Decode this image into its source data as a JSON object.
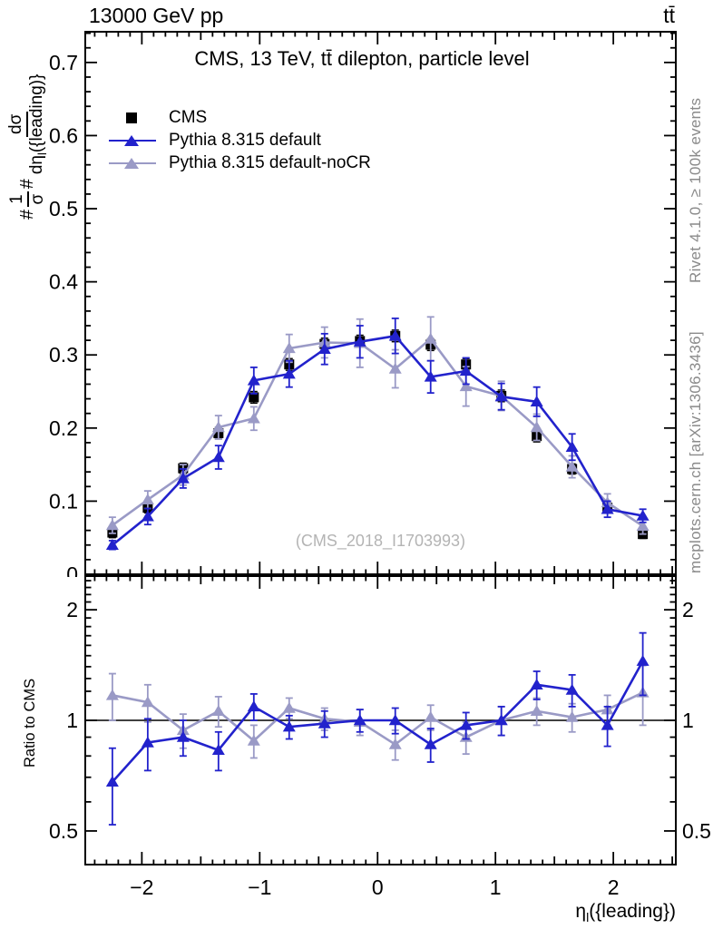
{
  "header": {
    "beam": "13000 GeV pp",
    "process": "tt̄"
  },
  "titles": {
    "plot_title": "CMS, 13 TeV, tt̄ dilepton, particle level",
    "watermark": "(CMS_2018_I1703993)",
    "rivet_note": "Rivet 4.1.0, ≥ 100k events",
    "mcplots_note": "mcplots.cern.ch [arXiv:1306.3436]"
  },
  "legend": [
    {
      "label": "CMS",
      "marker": "square",
      "color": "#000000"
    },
    {
      "label": "Pythia 8.315 default",
      "marker": "line-triangle",
      "color": "#2222cc"
    },
    {
      "label": "Pythia 8.315 default-noCR",
      "marker": "line-triangle",
      "color": "#9a9ac6"
    }
  ],
  "axis": {
    "y_prefix": "#",
    "y_f1num": "1",
    "y_f1den": "σ",
    "y_mid": "#",
    "y_f2num": "dσ",
    "y_f2den_pre": "dη",
    "y_f2den_sub": "l",
    "y_f2den_post": "({leading)}",
    "x_pre": "η",
    "x_sub": "l",
    "x_post": "({leading})",
    "ratio_label": "Ratio to CMS"
  },
  "colors": {
    "cms": "#000000",
    "pythia_default": "#2222cc",
    "pythia_nocr": "#9a9ac6",
    "frame": "#000000",
    "side_text": "#8a8a8a",
    "watermark": "#b4b4b4"
  },
  "chart_data": {
    "type": "line",
    "title": "CMS, 13 TeV, tt̄ dilepton, particle level",
    "xlabel": "η_l({leading})",
    "ylabel": "# 1/σ # dσ/dη_l({leading)}",
    "legend_position": "top-left",
    "grid": false,
    "x_bins": [
      -2.25,
      -1.95,
      -1.65,
      -1.35,
      -1.05,
      -0.75,
      -0.45,
      -0.15,
      0.15,
      0.45,
      0.75,
      1.05,
      1.35,
      1.65,
      1.95,
      2.25
    ],
    "xlim": [
      -2.48,
      2.53
    ],
    "xticks": {
      "major": [
        -2,
        -1,
        0,
        1,
        2
      ],
      "labels": [
        "−2",
        "−1",
        "0",
        "1",
        "2"
      ],
      "minor_step": 0.1,
      "medium_step": 0.5
    },
    "main_panel": {
      "ylim": [
        0,
        0.742
      ],
      "ytick_minor_step": 0.02,
      "ytick_labels": [
        {
          "v": 0,
          "t": "0"
        },
        {
          "v": 0.1,
          "t": "0.1"
        },
        {
          "v": 0.2,
          "t": "0.2"
        },
        {
          "v": 0.3,
          "t": "0.3"
        },
        {
          "v": 0.4,
          "t": "0.4"
        },
        {
          "v": 0.5,
          "t": "0.5"
        },
        {
          "v": 0.6,
          "t": "0.6"
        },
        {
          "v": 0.7,
          "t": "0.7"
        }
      ],
      "series": [
        {
          "id": "cms",
          "name": "CMS",
          "color": "#000000",
          "marker": "square",
          "line": false,
          "values": [
            0.057,
            0.091,
            0.145,
            0.193,
            0.242,
            0.287,
            0.315,
            0.319,
            0.326,
            0.314,
            0.287,
            0.244,
            0.189,
            0.144,
            0.091,
            0.055
          ],
          "errors": [
            0.007,
            0.007,
            0.007,
            0.008,
            0.008,
            0.008,
            0.008,
            0.008,
            0.008,
            0.008,
            0.008,
            0.008,
            0.008,
            0.007,
            0.007,
            0.006
          ]
        },
        {
          "id": "pythia-nocr",
          "name": "Pythia 8.315 default-noCR",
          "color": "#9a9ac6",
          "marker": "triangle",
          "line": true,
          "values": [
            0.067,
            0.102,
            0.136,
            0.201,
            0.213,
            0.309,
            0.317,
            0.316,
            0.281,
            0.322,
            0.257,
            0.244,
            0.201,
            0.147,
            0.098,
            0.066
          ],
          "errors": [
            0.011,
            0.012,
            0.014,
            0.016,
            0.016,
            0.019,
            0.021,
            0.033,
            0.026,
            0.03,
            0.027,
            0.02,
            0.018,
            0.015,
            0.012,
            0.011
          ]
        },
        {
          "id": "pythia-default",
          "name": "Pythia 8.315 default",
          "color": "#2222cc",
          "marker": "triangle",
          "line": true,
          "values": [
            0.04,
            0.079,
            0.131,
            0.16,
            0.265,
            0.274,
            0.308,
            0.318,
            0.326,
            0.27,
            0.278,
            0.243,
            0.236,
            0.174,
            0.089,
            0.08
          ],
          "errors": [
            0.006,
            0.011,
            0.013,
            0.016,
            0.018,
            0.018,
            0.021,
            0.022,
            0.024,
            0.022,
            0.018,
            0.018,
            0.02,
            0.018,
            0.011,
            0.009
          ]
        }
      ]
    },
    "ratio_panel": {
      "ylabel": "Ratio to CMS",
      "scale": "log",
      "ylim": [
        0.405,
        2.47
      ],
      "ref_line": 1,
      "ytick_labels": [
        {
          "v": 0.5,
          "t": "0.5"
        },
        {
          "v": 1,
          "t": "1"
        },
        {
          "v": 2,
          "t": "2"
        }
      ],
      "ytick_minor": [
        0.6,
        0.7,
        0.8,
        0.9,
        1.1,
        1.2,
        1.3,
        1.4,
        1.5,
        1.6,
        1.7,
        1.8,
        1.9,
        2.1,
        2.2,
        2.3,
        2.4
      ],
      "series": [
        {
          "id": "pythia-nocr-ratio",
          "name": "Pythia 8.315 default-noCR",
          "color": "#9a9ac6",
          "marker": "triangle",
          "line": true,
          "values": [
            1.17,
            1.12,
            0.94,
            1.06,
            0.88,
            1.08,
            1.01,
            0.99,
            0.86,
            1.02,
            0.9,
            1.0,
            1.06,
            1.02,
            1.07,
            1.19
          ],
          "errors": [
            0.17,
            0.13,
            0.1,
            0.1,
            0.09,
            0.07,
            0.07,
            0.08,
            0.08,
            0.08,
            0.09,
            0.09,
            0.09,
            0.09,
            0.1,
            0.22
          ]
        },
        {
          "id": "pythia-default-ratio",
          "name": "Pythia 8.315 default",
          "color": "#2222cc",
          "marker": "triangle",
          "line": true,
          "values": [
            0.68,
            0.87,
            0.9,
            0.83,
            1.09,
            0.96,
            0.98,
            1.0,
            1.0,
            0.86,
            0.97,
            1.0,
            1.25,
            1.21,
            0.97,
            1.45
          ],
          "errors": [
            0.16,
            0.14,
            0.1,
            0.1,
            0.09,
            0.07,
            0.08,
            0.07,
            0.08,
            0.09,
            0.08,
            0.09,
            0.11,
            0.12,
            0.12,
            0.28
          ]
        }
      ]
    }
  }
}
